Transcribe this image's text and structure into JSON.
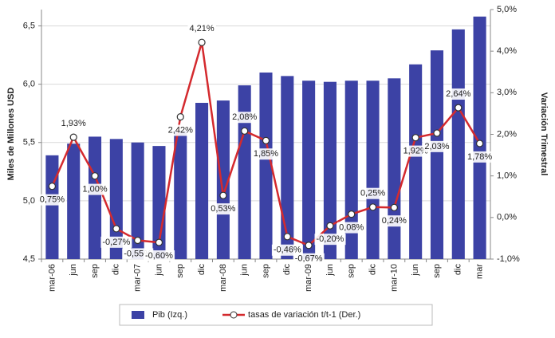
{
  "chart_data": {
    "type": "bar_line",
    "y_label": "Miles de Millones USD",
    "y2_label": "Variación Trimestral",
    "categories": [
      "mar-06",
      "jun",
      "sep",
      "dic",
      "mar-07",
      "jun",
      "sep",
      "dic",
      "mar-08",
      "jun",
      "sep",
      "dic",
      "mar-09",
      "jun",
      "sep",
      "dic",
      "mar-10",
      "jun",
      "sep",
      "dic",
      "mar"
    ],
    "series": [
      {
        "name": "Pib (Izq.)",
        "type": "bar",
        "color": "#3c42a5",
        "values": [
          5.39,
          5.49,
          5.55,
          5.53,
          5.5,
          5.47,
          5.6,
          5.84,
          5.86,
          5.99,
          6.1,
          6.07,
          6.03,
          6.02,
          6.03,
          6.03,
          6.05,
          6.17,
          6.29,
          6.47,
          6.58
        ]
      },
      {
        "name": "tasas de variación t/t-1 (Der.)",
        "type": "line",
        "axis": "y2",
        "color": "#d42a2e",
        "values": [
          0.75,
          1.93,
          1.0,
          -0.27,
          -0.55,
          -0.6,
          2.42,
          4.21,
          0.53,
          2.08,
          1.85,
          -0.46,
          -0.67,
          -0.2,
          0.08,
          0.25,
          0.24,
          1.92,
          2.03,
          2.64,
          1.78
        ],
        "value_labels": [
          "0,75%",
          "1,93%",
          "1,00%",
          "-0,27%",
          "-0,55%",
          "-0,60%",
          "2,42%",
          "4,21%",
          "0,53%",
          "2,08%",
          "1,85%",
          "-0,46%",
          "-0,67%",
          "-0,20%",
          "0,08%",
          "0,25%",
          "0,24%",
          "1,92%",
          "2,03%",
          "2,64%",
          "1,78%"
        ]
      }
    ],
    "ylim": [
      4.5,
      6.64
    ],
    "yticks": [
      {
        "value": 4.5,
        "label": "4,5"
      },
      {
        "value": 5.0,
        "label": "5,0"
      },
      {
        "value": 5.5,
        "label": "5,5"
      },
      {
        "value": 6.0,
        "label": "6,0"
      },
      {
        "value": 6.5,
        "label": "6,5"
      }
    ],
    "y2lim": [
      -1,
      5
    ],
    "y2ticks": [
      {
        "value": -1,
        "label": "-1,0%"
      },
      {
        "value": 0,
        "label": "0,0%"
      },
      {
        "value": 1,
        "label": "1,0%"
      },
      {
        "value": 2,
        "label": "2,0%"
      },
      {
        "value": 3,
        "label": "3,0%"
      },
      {
        "value": 4,
        "label": "4,0%"
      },
      {
        "value": 5,
        "label": "5,0%"
      }
    ],
    "grid": true,
    "legend": "bottom"
  }
}
